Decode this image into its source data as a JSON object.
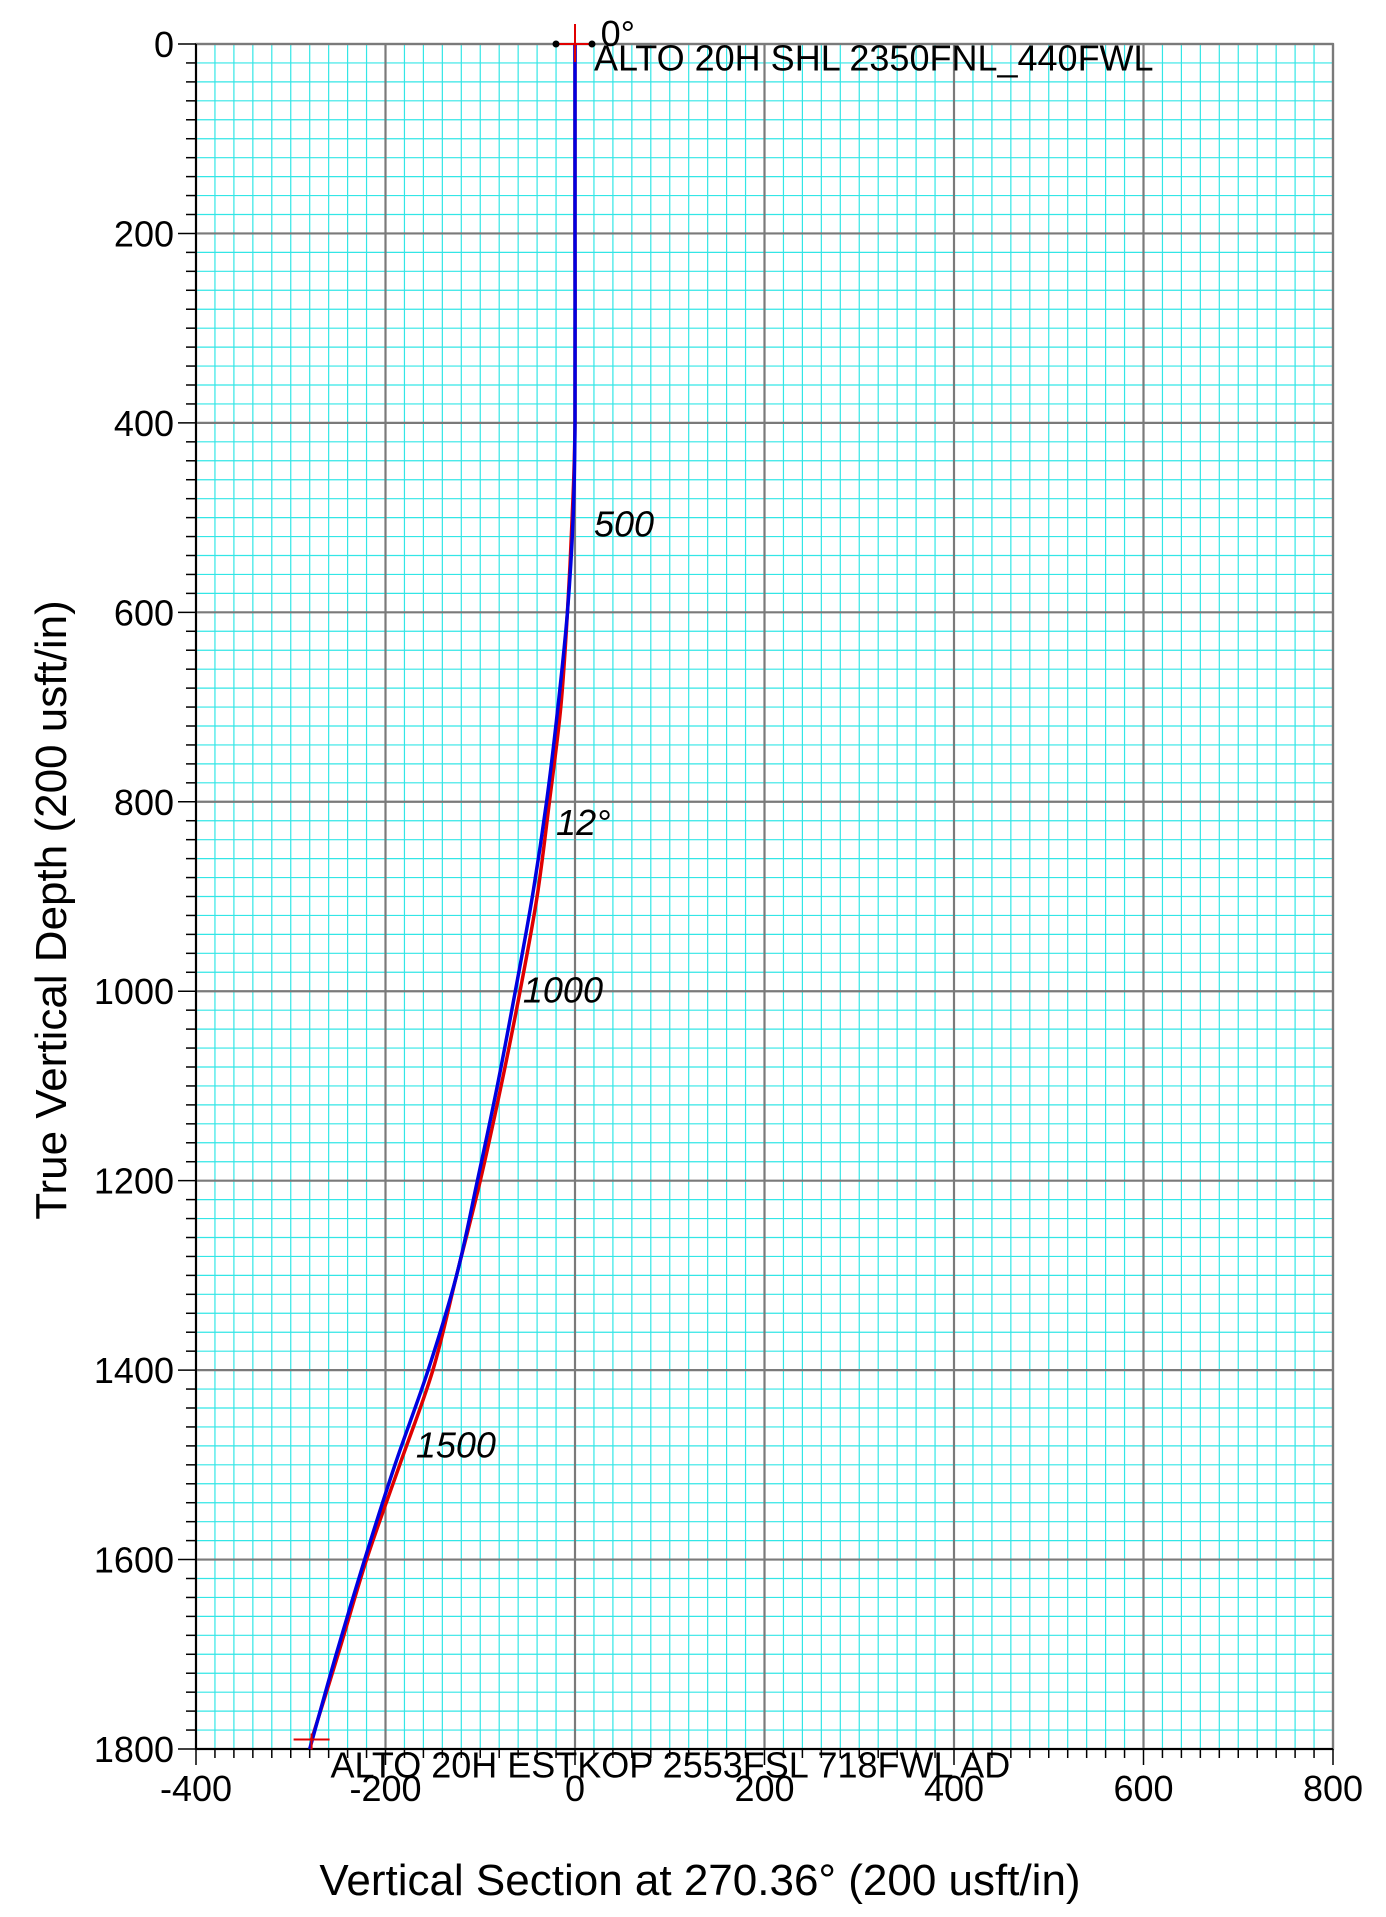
{
  "chart_data": {
    "type": "line",
    "xlabel": "Vertical Section at 270.36° (200 usft/in)",
    "ylabel": "True Vertical Depth (200 usft/in)",
    "xlim": [
      -400,
      800
    ],
    "ylim": [
      0,
      1800
    ],
    "y_inverted": true,
    "x_major_step": 200,
    "y_major_step": 200,
    "x_minor_step": 20,
    "y_minor_step": 20,
    "x_ticks": [
      -400,
      -200,
      0,
      200,
      400,
      600,
      800
    ],
    "x_tick_labels": [
      "-400",
      "-200",
      "0",
      "200",
      "400",
      "600",
      "800"
    ],
    "y_ticks": [
      0,
      200,
      400,
      600,
      800,
      1000,
      1200,
      1400,
      1600,
      1800
    ],
    "y_tick_labels": [
      "0",
      "200",
      "400",
      "600",
      "800",
      "1000",
      "1200",
      "1400",
      "1600",
      "1800"
    ],
    "grid": true,
    "colors": {
      "minor_grid": "#33e6e6",
      "major_grid": "#7a7a7a",
      "plan": "#e00000",
      "actual": "#0000e0",
      "axis": "#000000"
    },
    "series": [
      {
        "key": "plan",
        "x": [
          0,
          0,
          0,
          -3,
          -8,
          -15,
          -27,
          -40,
          -58,
          -78,
          -100,
          -125,
          -150,
          -185,
          -220,
          -250,
          -278
        ],
        "y": [
          0,
          200,
          400,
          500,
          600,
          700,
          800,
          900,
          1000,
          1100,
          1200,
          1300,
          1400,
          1500,
          1600,
          1700,
          1790
        ]
      },
      {
        "key": "actual",
        "x": [
          0,
          0,
          0,
          -2,
          -8,
          -18,
          -30,
          -45,
          -63,
          -82,
          -103,
          -125,
          -155,
          -190,
          -222,
          -252,
          -280
        ],
        "y": [
          0,
          200,
          400,
          500,
          600,
          700,
          800,
          900,
          1000,
          1100,
          1200,
          1300,
          1400,
          1500,
          1600,
          1700,
          1800
        ]
      }
    ],
    "annotations": [
      {
        "text": "0°",
        "x": 27,
        "y": 2,
        "style": "normal"
      },
      {
        "text": "ALTO 20H SHL 2350FNL_440FWL",
        "x": 20,
        "y": 28,
        "style": "normal"
      },
      {
        "text": "500",
        "x": 20,
        "y": 520,
        "style": "italic"
      },
      {
        "text": "12°",
        "x": -20,
        "y": 835,
        "style": "italic"
      },
      {
        "text": "1000",
        "x": -55,
        "y": 1012,
        "style": "italic"
      },
      {
        "text": "1500",
        "x": -168,
        "y": 1492,
        "style": "italic"
      },
      {
        "text": "ALTO 20H ESTKOP 2553FSL 718FWL AD",
        "x": -258,
        "y": 1830,
        "style": "normal"
      }
    ]
  }
}
